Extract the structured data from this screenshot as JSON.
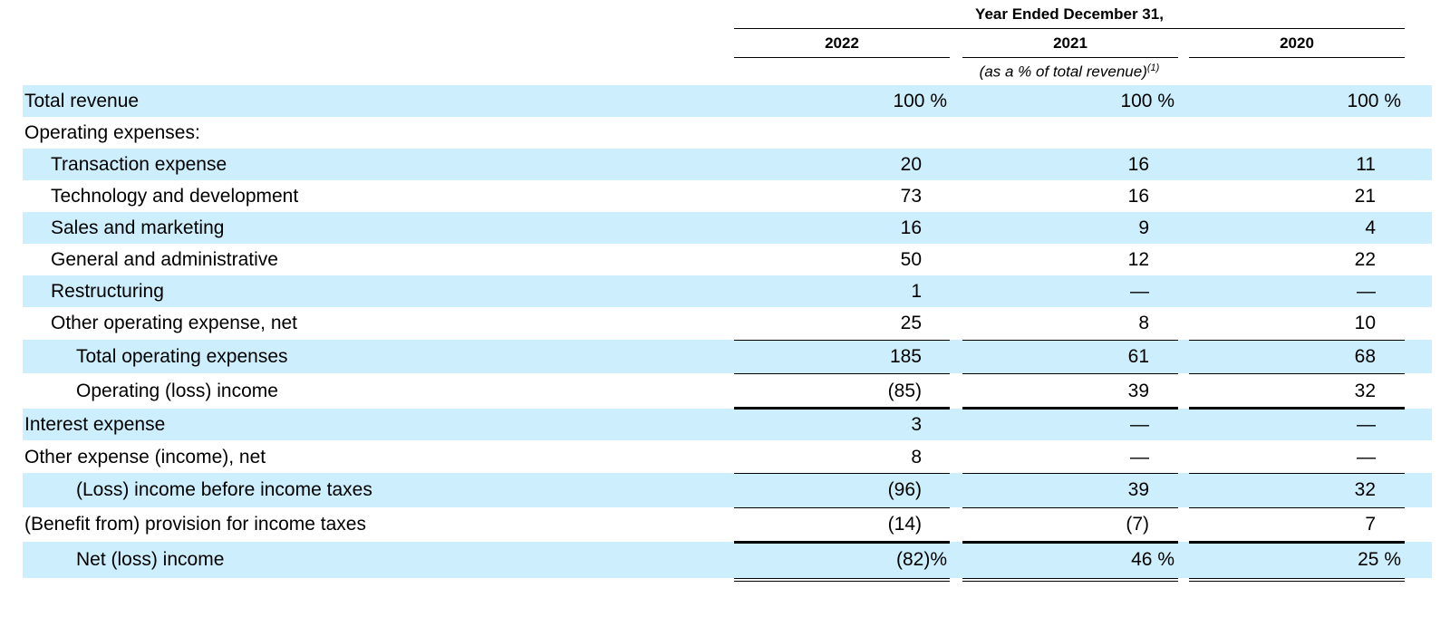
{
  "header": {
    "period_title": "Year Ended December 31,",
    "years": [
      "2022",
      "2021",
      "2020"
    ],
    "note": "(as a % of total revenue)",
    "note_ref": "(1)"
  },
  "rows": [
    {
      "label": "Total revenue",
      "values": [
        "100 %",
        "100 %",
        "100 %"
      ]
    },
    {
      "label": "Operating expenses:",
      "values": [
        "",
        "",
        ""
      ]
    },
    {
      "label": "Transaction expense",
      "values": [
        "20",
        "16",
        "11"
      ]
    },
    {
      "label": "Technology and development",
      "values": [
        "73",
        "16",
        "21"
      ]
    },
    {
      "label": "Sales and marketing",
      "values": [
        "16",
        "9",
        "4"
      ]
    },
    {
      "label": "General and administrative",
      "values": [
        "50",
        "12",
        "22"
      ]
    },
    {
      "label": "Restructuring",
      "values": [
        "1",
        "—",
        "—"
      ]
    },
    {
      "label": "Other operating expense, net",
      "values": [
        "25",
        "8",
        "10"
      ]
    },
    {
      "label": "Total operating expenses",
      "values": [
        "185",
        "61",
        "68"
      ]
    },
    {
      "label": "Operating (loss) income",
      "values": [
        "(85)",
        "39",
        "32"
      ]
    },
    {
      "label": "Interest expense",
      "values": [
        "3",
        "—",
        "—"
      ]
    },
    {
      "label": "Other expense (income), net",
      "values": [
        "8",
        "—",
        "—"
      ]
    },
    {
      "label": "(Loss) income before income taxes",
      "values": [
        "(96)",
        "39",
        "32"
      ]
    },
    {
      "label": "(Benefit from) provision for income taxes",
      "values": [
        "(14)",
        "(7)",
        "7"
      ]
    },
    {
      "label": "Net (loss) income",
      "values": [
        "(82)%",
        "46 %",
        "25 %"
      ]
    }
  ],
  "colors": {
    "row_shade": "#cdeefc"
  }
}
